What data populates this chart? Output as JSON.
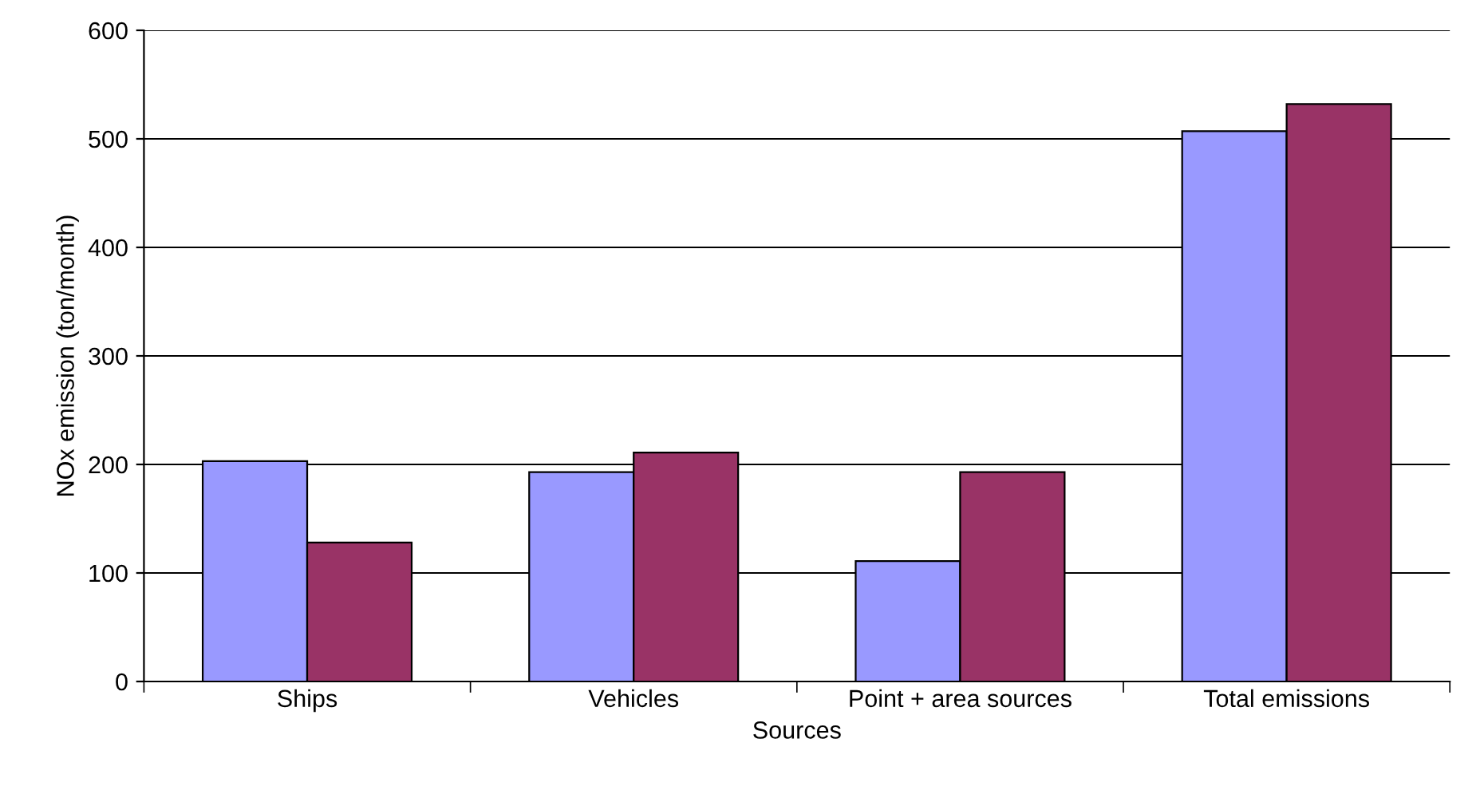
{
  "chart_data": {
    "type": "bar",
    "xlabel": "Sources",
    "ylabel": "NOx emission (ton/month)",
    "categories": [
      "Ships",
      "Vehicles",
      "Point + area sources",
      "Total emissions"
    ],
    "series": [
      {
        "color": "#9999ff",
        "values": [
          203,
          193,
          111,
          507
        ]
      },
      {
        "color": "#993366",
        "values": [
          128,
          211,
          193,
          532
        ]
      }
    ],
    "ylim": [
      0,
      600
    ],
    "yticks": [
      0,
      100,
      200,
      300,
      400,
      500,
      600
    ],
    "grid": "y"
  }
}
